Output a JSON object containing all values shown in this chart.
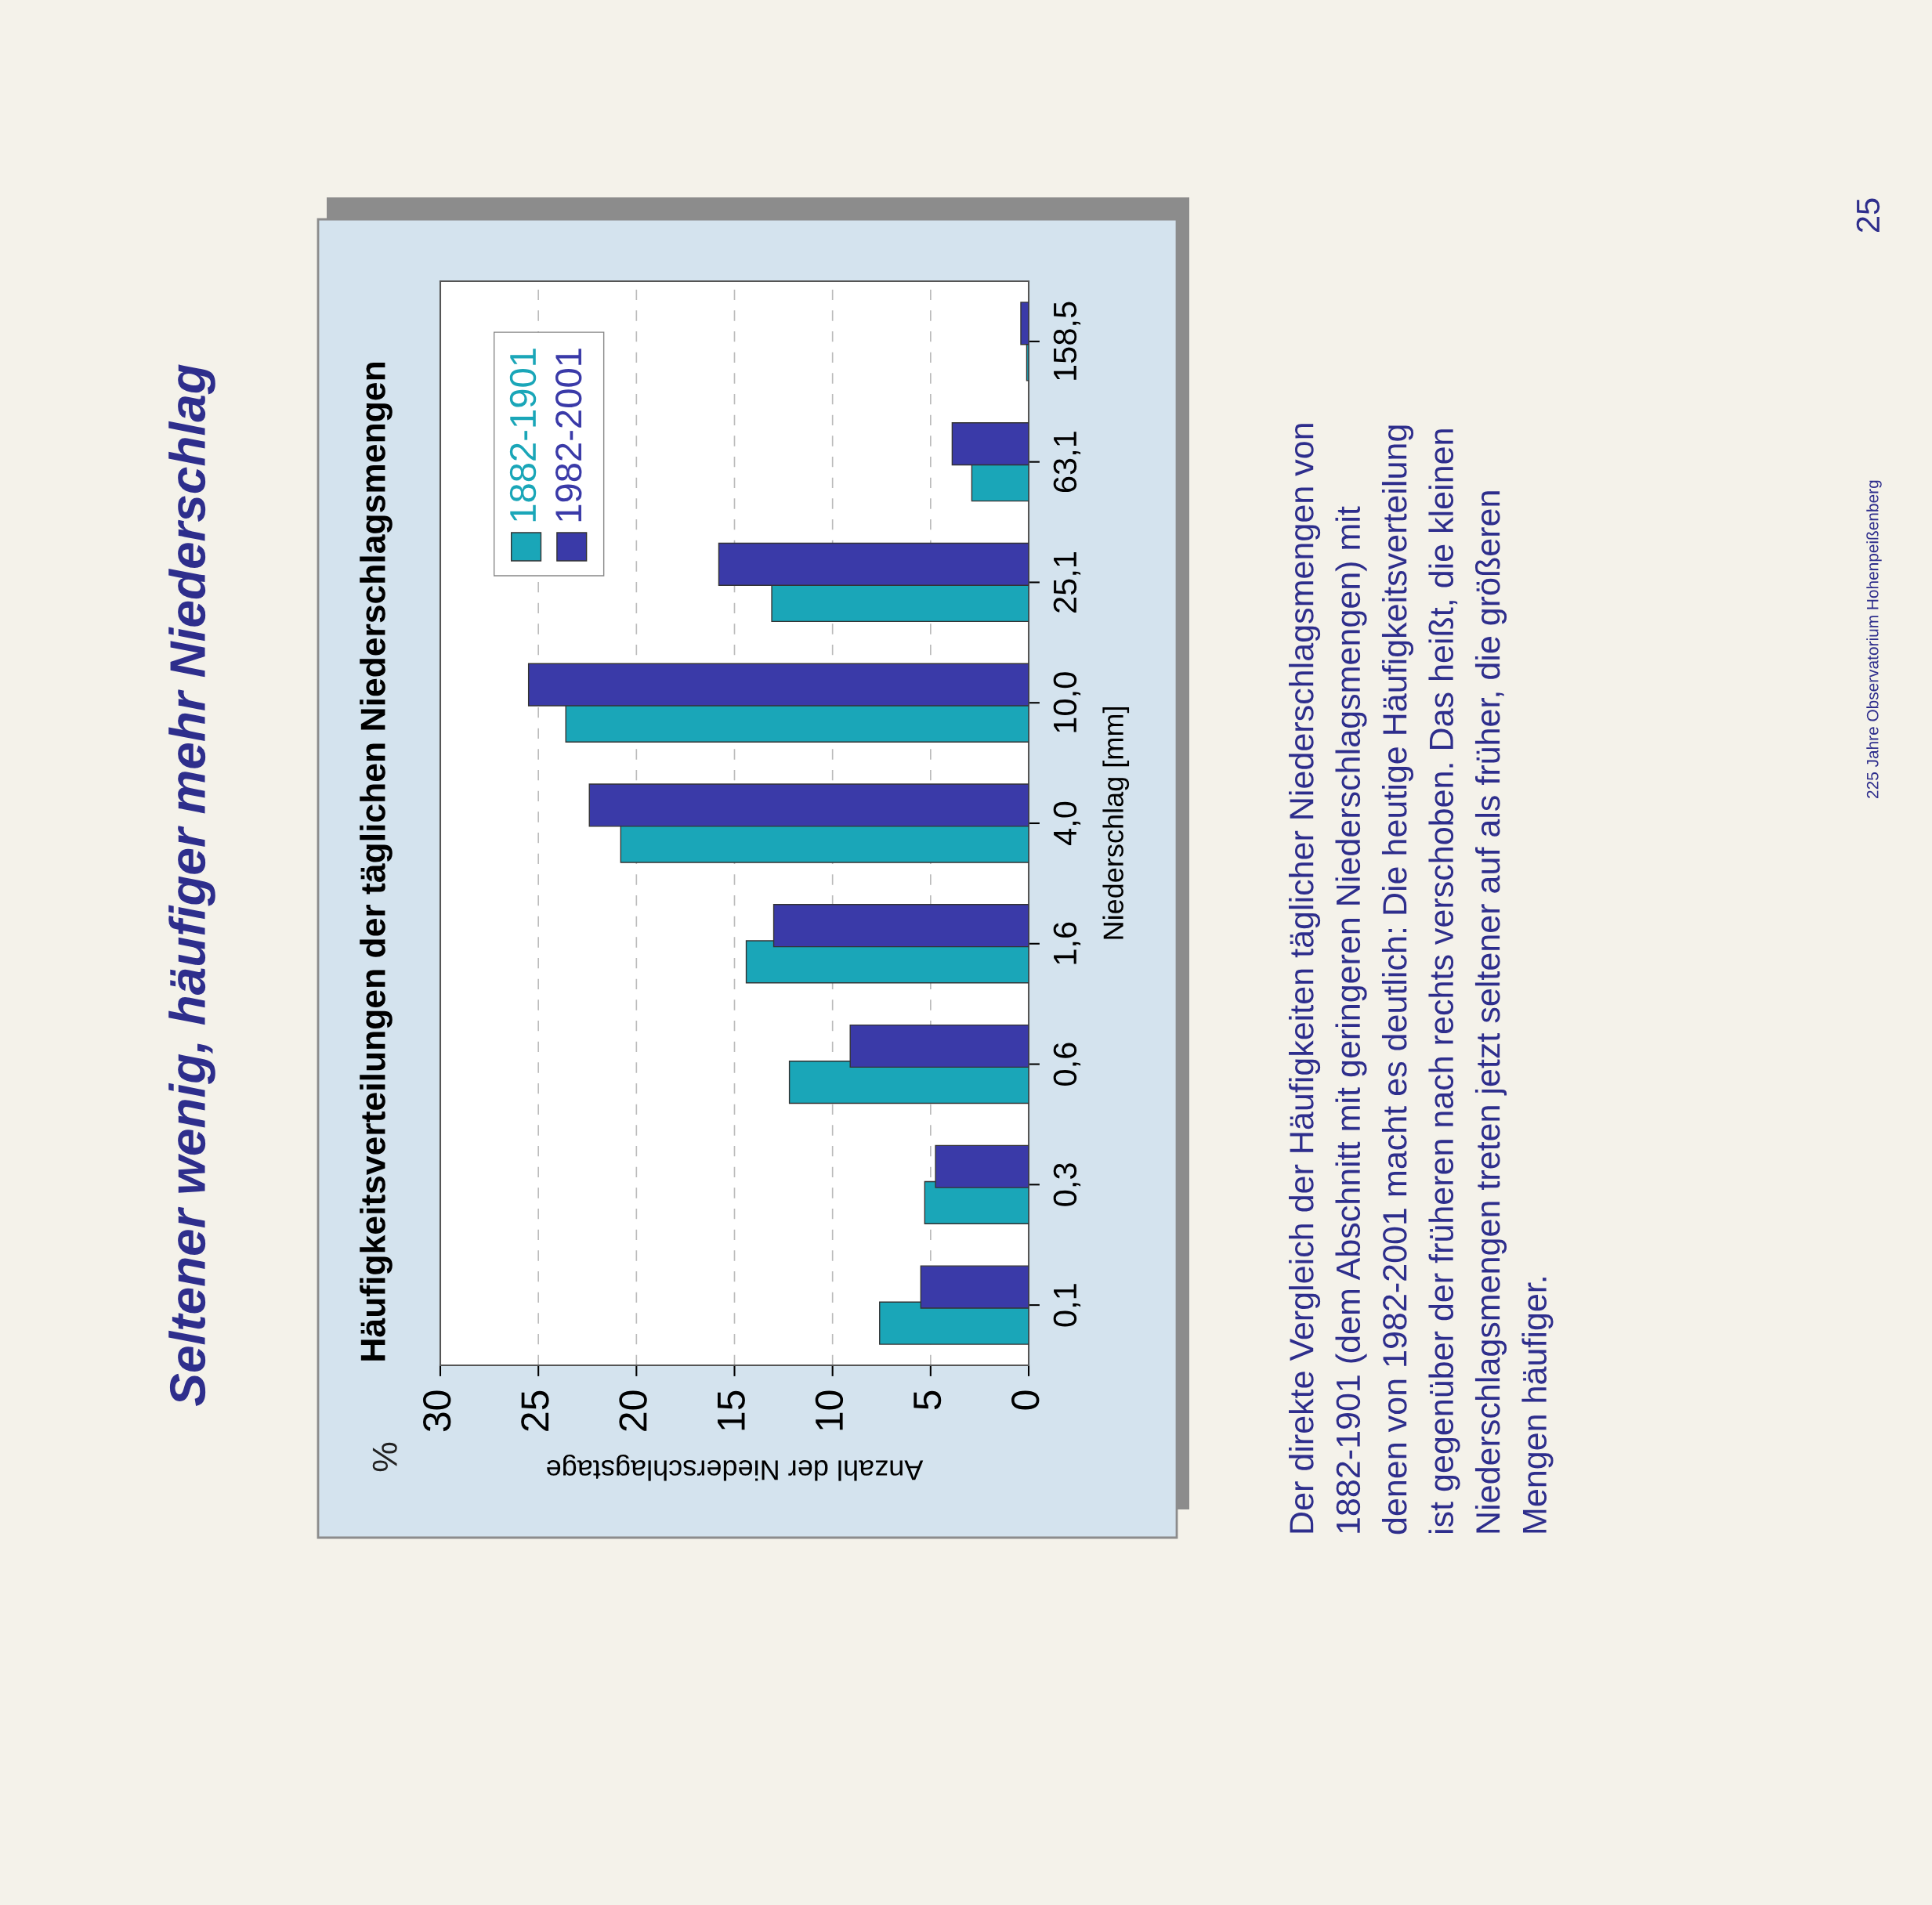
{
  "chart_data": {
    "type": "bar",
    "orientation": "horizontal",
    "title": "Häufigkeitsverteilungen der täglichen Niederschlagsmengen",
    "xlabel": "Anzahl der Niederschlagstage",
    "ylabel": "Niederschlag [mm]",
    "categories": [
      "158,5",
      "63,1",
      "25,1",
      "10,0",
      "4,0",
      "1,6",
      "0,6",
      "0,3",
      "0,1"
    ],
    "series": [
      {
        "name": "1882-1901",
        "color": "#1aa6b8",
        "values": [
          0.1,
          2.9,
          13.1,
          23.6,
          20.8,
          14.4,
          12.2,
          5.3,
          7.6
        ]
      },
      {
        "name": "1982-2001",
        "color": "#3a3aa8",
        "values": [
          0.4,
          3.9,
          15.8,
          25.5,
          22.4,
          13.0,
          9.1,
          4.75,
          5.5
        ]
      }
    ],
    "xlim": [
      30,
      0
    ],
    "xticks": [
      0,
      5,
      10,
      15,
      20,
      25,
      30
    ],
    "grid": "x",
    "legend": "top left",
    "annotations": [
      "Seltener wenig, häufiger mehr Niederschlag",
      "%",
      "Der direkte Vergleich der Häufigkeiten täglicher Niederschlagsmengen von\n1882-1901 (dem Abschnitt mit geringeren Niederschlagsmengen) mit\ndenen von 1982-2001 macht es deutlich: Die heutige Häufigkeitsverteilung\nist gegenüber der früheren nach rechts verschoben. Das heißt, die kleinen\nNiederschlagsmengen treten jetzt seltener auf als früher, die größeren\nMengen häufiger.",
      "225 Jahre Observatorium Hohenpeißenberg",
      "25"
    ]
  }
}
